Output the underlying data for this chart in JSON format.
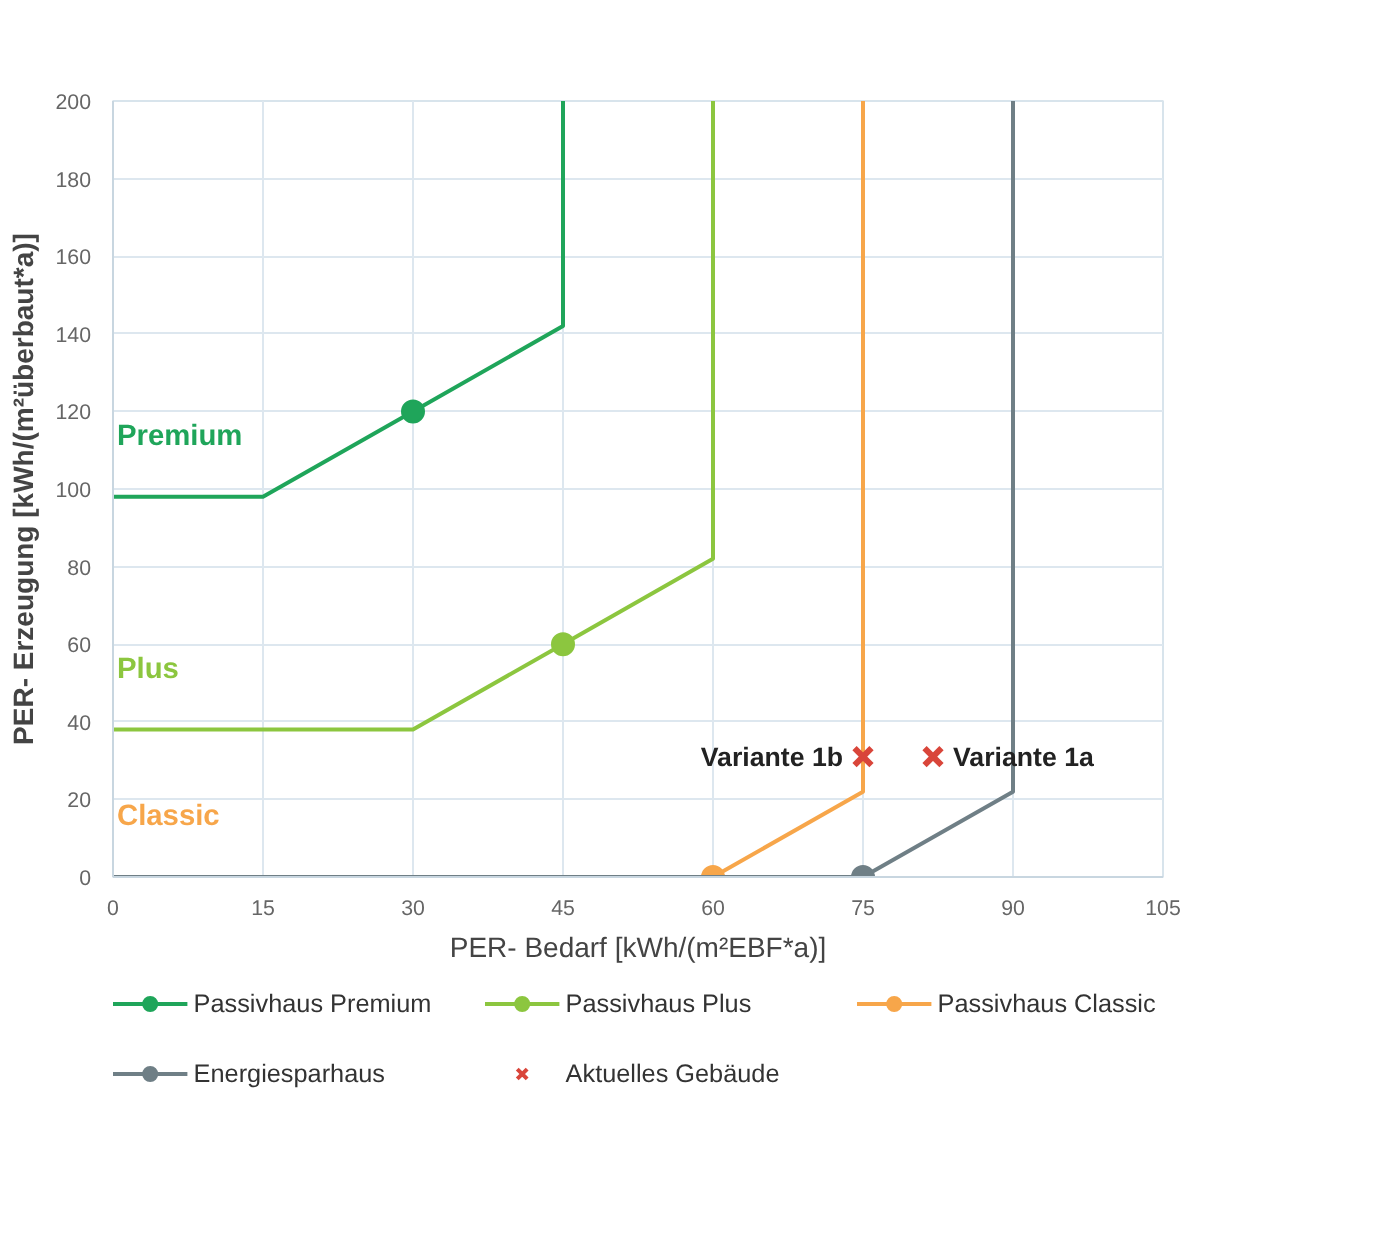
{
  "chart_data": {
    "type": "line",
    "xlabel": "PER- Bedarf [kWh/(m²EBF*a)]",
    "ylabel": "PER- Erzeugung [kWh/(m²überbaut*a)]",
    "xlim": [
      0,
      105
    ],
    "ylim": [
      0,
      200
    ],
    "xticks": [
      0,
      15,
      30,
      45,
      60,
      75,
      90,
      105
    ],
    "yticks": [
      0,
      20,
      40,
      60,
      80,
      100,
      120,
      140,
      160,
      180,
      200
    ],
    "grid": true,
    "legend": "bottom",
    "series": [
      {
        "name": "Passivhaus Premium",
        "color": "#1fa55a",
        "x": [
          0,
          15,
          30,
          45,
          45
        ],
        "values": [
          98,
          98,
          120,
          142,
          200
        ]
      },
      {
        "type": "scatter",
        "marker": "circle",
        "color": "#1fa55a",
        "x": [
          30
        ],
        "values": [
          120
        ]
      },
      {
        "name": "Passivhaus Plus",
        "color": "#8cc63f",
        "x": [
          0,
          30,
          45,
          60,
          60
        ],
        "values": [
          38,
          38,
          60,
          82,
          200
        ]
      },
      {
        "type": "scatter",
        "marker": "circle",
        "color": "#8cc63f",
        "x": [
          45
        ],
        "values": [
          60
        ]
      },
      {
        "name": "Passivhaus Classic",
        "color": "#f7a64a",
        "x": [
          60,
          75,
          75
        ],
        "values": [
          0,
          22,
          200
        ]
      },
      {
        "type": "scatter",
        "marker": "circle",
        "color": "#f7a64a",
        "x": [
          60
        ],
        "values": [
          0
        ]
      },
      {
        "name": "Energiesparhaus",
        "color": "#6f7f86",
        "x": [
          0,
          75,
          90,
          90
        ],
        "values": [
          0,
          0,
          22,
          200
        ]
      },
      {
        "type": "scatter",
        "marker": "circle",
        "color": "#6f7f86",
        "x": [
          75
        ],
        "values": [
          0
        ]
      },
      {
        "name": "Aktuelles Gebäude",
        "type": "scatter",
        "marker": "cross",
        "color": "#d9453a",
        "x": [
          75,
          82
        ],
        "values": [
          31,
          31
        ]
      }
    ],
    "annotations": [
      "Premium",
      "Plus",
      "Classic",
      {
        "text": "Variante 1b",
        "x": 75,
        "y": 31
      },
      {
        "text": "Variante 1a",
        "x": 82,
        "y": 31
      }
    ]
  }
}
